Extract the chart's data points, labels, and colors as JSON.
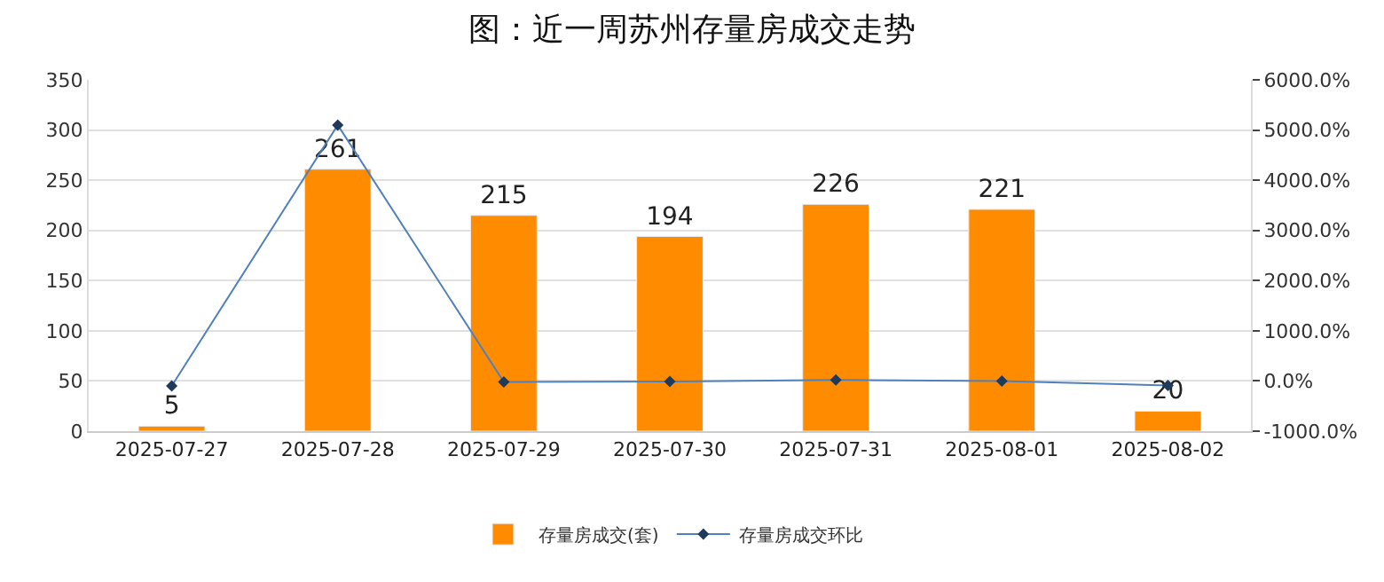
{
  "chart_data": {
    "type": "bar",
    "title": "图：近一周苏州存量房成交走势",
    "categories": [
      "2025-07-27",
      "2025-07-28",
      "2025-07-29",
      "2025-07-30",
      "2025-07-31",
      "2025-08-01",
      "2025-08-02"
    ],
    "series": [
      {
        "name": "存量房成交(套)",
        "color": "#ff8c00",
        "values": [
          5,
          261,
          215,
          194,
          226,
          221,
          20
        ],
        "value_labels": [
          "5",
          "261",
          "215",
          "194",
          "226",
          "221",
          "20"
        ]
      },
      {
        "name": "存量房成交环比",
        "type": "line",
        "axis": "y2",
        "color": "#4f81bd",
        "values": [
          -100,
          5100,
          -20,
          -10,
          20,
          0,
          -90
        ]
      }
    ],
    "ylim": [
      0,
      350
    ],
    "yticks": [
      0,
      50,
      100,
      150,
      200,
      250,
      300,
      350
    ],
    "y2lim": [
      -1000,
      6000
    ],
    "y2ticks": [
      {
        "value": -1000,
        "label": "-1000.0%"
      },
      {
        "value": 0,
        "label": "0.0%"
      },
      {
        "value": 1000,
        "label": "1000.0%"
      },
      {
        "value": 2000,
        "label": "2000.0%"
      },
      {
        "value": 3000,
        "label": "3000.0%"
      },
      {
        "value": 4000,
        "label": "4000.0%"
      },
      {
        "value": 5000,
        "label": "5000.0%"
      },
      {
        "value": 6000,
        "label": "6000.0%"
      }
    ],
    "grid": "y",
    "legend": "bottom",
    "marker": "diamond",
    "line_style": "solid"
  }
}
